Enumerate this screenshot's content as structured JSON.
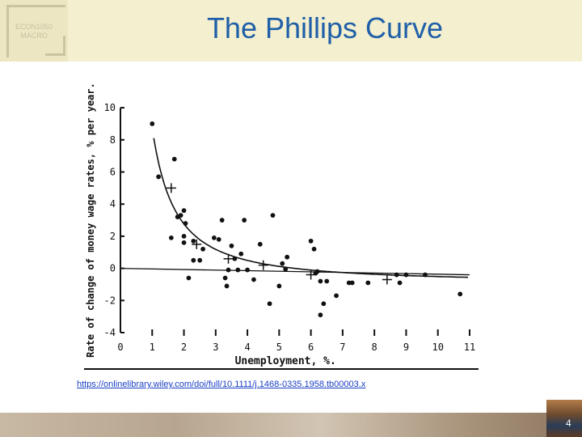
{
  "header": {
    "badge_line1": "ECON1050",
    "badge_line2": "MACRO",
    "title": "The Phillips Curve"
  },
  "link": {
    "text": "https://onlinelibrary.wiley.com/doi/full/10.1111/j.1468-0335.1958.tb00003.x"
  },
  "page_number": "4",
  "chart_data": {
    "type": "scatter",
    "title": "",
    "xlabel": "Unemployment,      %.",
    "ylabel": "Rate of change of money wage rates, % per year.",
    "xlim": [
      0,
      11
    ],
    "ylim": [
      -4,
      10
    ],
    "x_ticks": [
      "0",
      "1",
      "2",
      "3",
      "4",
      "5",
      "6",
      "7",
      "8",
      "9",
      "10",
      "11"
    ],
    "y_ticks": [
      "-4",
      "-2",
      "0",
      "2",
      "4",
      "6",
      "8",
      "10"
    ],
    "grid": false,
    "legend": "none",
    "series": [
      {
        "kind": "points",
        "x": [
          1.0,
          1.2,
          1.7,
          1.6,
          1.8,
          1.9,
          2.0,
          2.05,
          2.0,
          2.0,
          2.15,
          2.3,
          2.3,
          2.5,
          2.6,
          2.95,
          3.1,
          3.2,
          3.3,
          3.35,
          3.4,
          3.5,
          3.6,
          3.7,
          3.8,
          3.9,
          4.0,
          4.2,
          4.4,
          4.7,
          4.8,
          5.0,
          5.1,
          5.2,
          5.25,
          6.0,
          6.1,
          6.15,
          6.2,
          6.3,
          6.3,
          6.4,
          6.5,
          6.8,
          7.2,
          7.3,
          7.8,
          8.7,
          8.8,
          9.0,
          9.6,
          10.7
        ],
        "y": [
          9.0,
          5.7,
          6.8,
          1.9,
          3.2,
          3.3,
          3.6,
          2.8,
          2.0,
          1.6,
          -0.6,
          0.5,
          1.7,
          0.5,
          1.2,
          1.9,
          1.8,
          3.0,
          -0.6,
          -1.1,
          -0.1,
          1.4,
          0.6,
          -0.1,
          0.9,
          3.0,
          -0.1,
          -0.7,
          1.5,
          -2.2,
          3.3,
          -1.1,
          0.3,
          -0.05,
          0.7,
          1.7,
          1.2,
          -0.3,
          -0.2,
          -0.8,
          -2.9,
          -2.2,
          -0.8,
          -1.7,
          -0.9,
          -0.9,
          -0.9,
          -0.4,
          -0.9,
          -0.4,
          -0.4,
          -1.6
        ]
      },
      {
        "kind": "averages",
        "x": [
          1.6,
          2.4,
          3.4,
          4.5,
          6.0,
          8.4
        ],
        "y": [
          5.0,
          1.5,
          0.6,
          0.2,
          -0.4,
          -0.7
        ]
      }
    ]
  }
}
